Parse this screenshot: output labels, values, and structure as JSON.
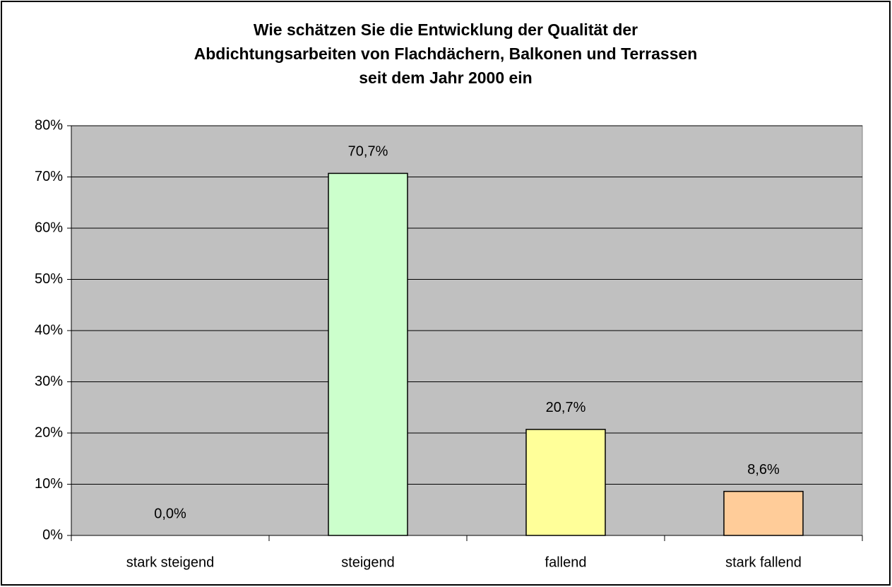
{
  "chart_data": {
    "type": "bar",
    "title": [
      "Wie schätzen Sie die Entwicklung der Qualität der",
      "Abdichtungsarbeiten von Flachdächern, Balkonen und Terrassen",
      "seit dem Jahr 2000 ein"
    ],
    "categories": [
      "stark steigend",
      "steigend",
      "fallend",
      "stark fallend"
    ],
    "values": [
      0,
      70.7,
      20.7,
      8.6
    ],
    "value_labels": [
      "0,0%",
      "70,7%",
      "20,7%",
      "8,6%"
    ],
    "colors": [
      "#ccffcc",
      "#ccffcc",
      "#ffff99",
      "#ffcc99"
    ],
    "ylim": [
      0,
      80
    ],
    "yticks": [
      {
        "value": 0,
        "label": "0%"
      },
      {
        "value": 10,
        "label": "10%"
      },
      {
        "value": 20,
        "label": "20%"
      },
      {
        "value": 30,
        "label": "30%"
      },
      {
        "value": 40,
        "label": "40%"
      },
      {
        "value": 50,
        "label": "50%"
      },
      {
        "value": 60,
        "label": "60%"
      },
      {
        "value": 70,
        "label": "70%"
      },
      {
        "value": 80,
        "label": "80%"
      }
    ],
    "grid": true
  }
}
